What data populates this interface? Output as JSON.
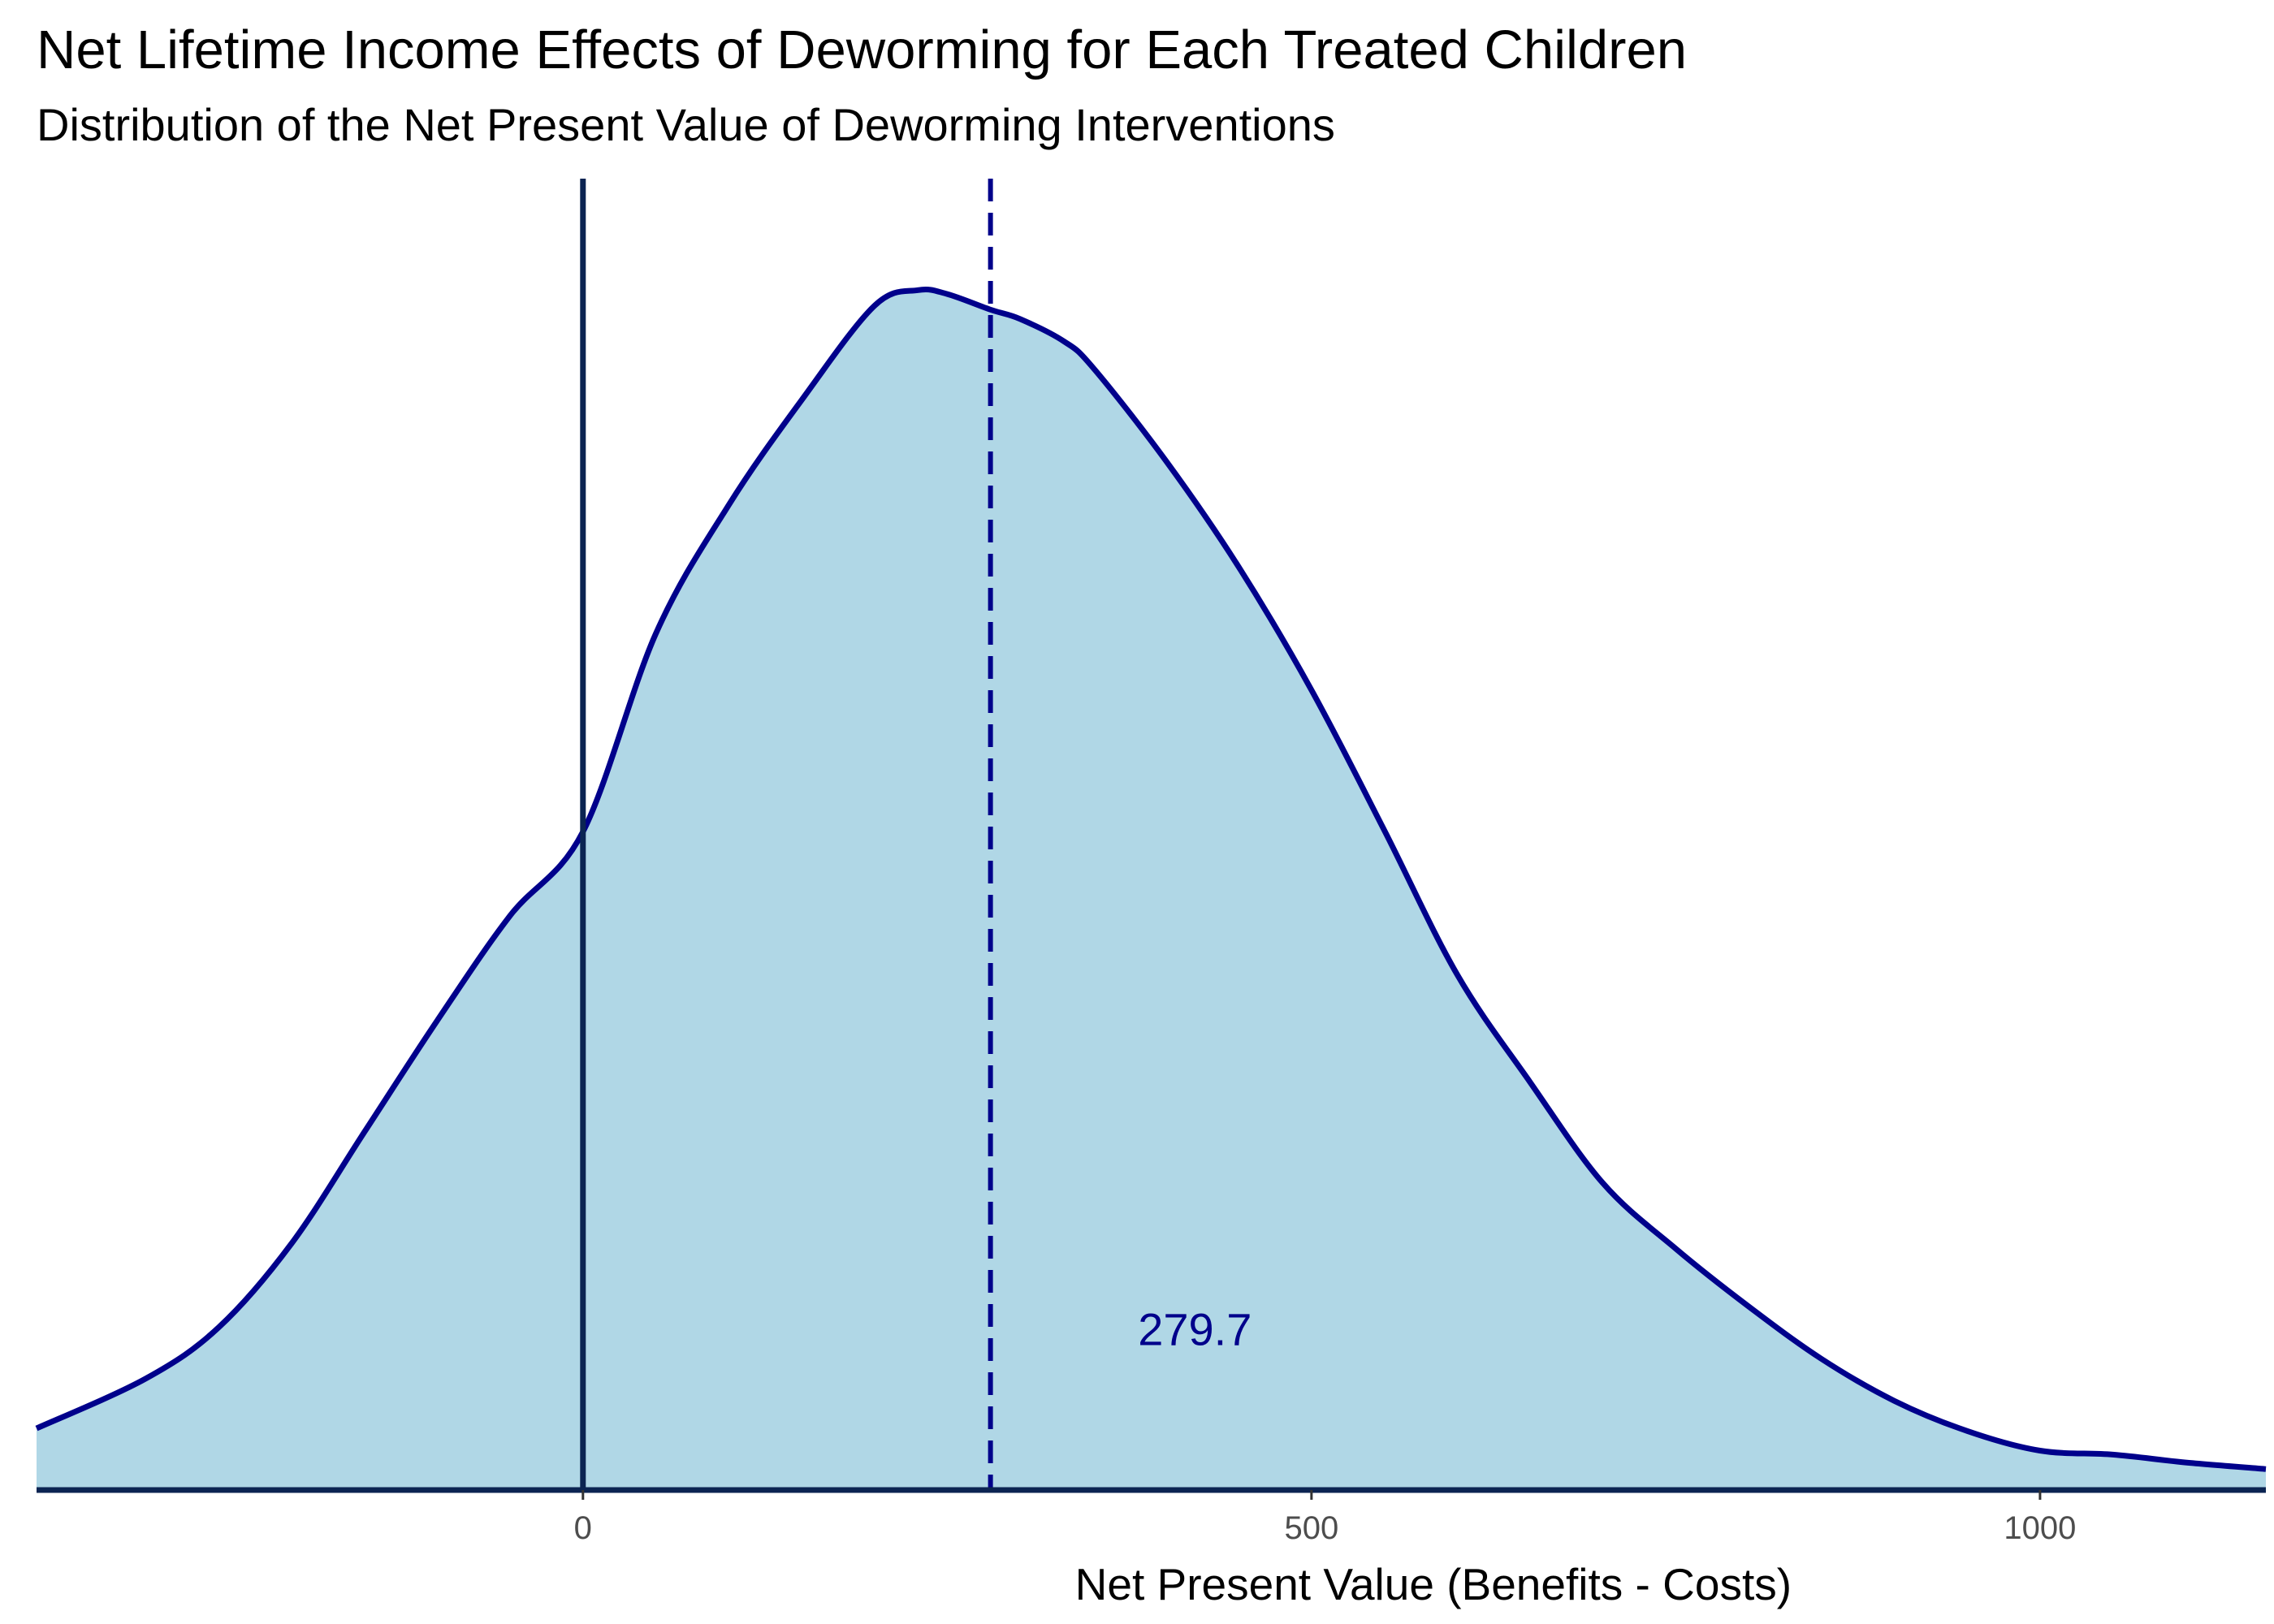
{
  "chart_data": {
    "type": "area",
    "title": "Net Lifetime Income Effects of Deworming for Each Treated Children",
    "subtitle": "Distribution of the Net Present Value of Deworming Interventions",
    "xlabel": "Net Present Value (Benefits -  Costs)",
    "ylabel": "",
    "xlim": [
      -375,
      1155
    ],
    "ylim": [
      0,
      1.0
    ],
    "x_ticks": [
      0,
      500,
      1000
    ],
    "x_tick_labels": [
      "0",
      "500",
      "1000"
    ],
    "y_ticks_shown": false,
    "grid": false,
    "legend": "none",
    "series": [
      {
        "x": [
          -375,
          -300,
          -250,
          -200,
          -150,
          -100,
          -50,
          0,
          50,
          100,
          150,
          200,
          230,
          250,
          280,
          300,
          330,
          350,
          400,
          450,
          500,
          550,
          600,
          650,
          700,
          750,
          800,
          850,
          900,
          950,
          1000,
          1050,
          1100,
          1155
        ],
        "y": [
          0.047,
          0.085,
          0.124,
          0.188,
          0.273,
          0.358,
          0.438,
          0.502,
          0.653,
          0.751,
          0.831,
          0.903,
          0.915,
          0.912,
          0.9,
          0.893,
          0.876,
          0.856,
          0.785,
          0.704,
          0.61,
          0.503,
          0.393,
          0.311,
          0.234,
          0.184,
          0.14,
          0.1,
          0.068,
          0.045,
          0.03,
          0.027,
          0.021,
          0.016
        ]
      }
    ],
    "reference_lines": [
      {
        "x": 0,
        "style": "solid"
      },
      {
        "x": 279.7,
        "style": "dashed"
      }
    ],
    "annotations": [
      {
        "text": "279.7",
        "x": 420,
        "y": 0.123
      }
    ],
    "colors": {
      "fill": "#b0d7e6",
      "density_line": "#00008b",
      "reference_line": "#0b2452",
      "axis_line": "#0b2452",
      "annotation": "#00008b"
    }
  }
}
